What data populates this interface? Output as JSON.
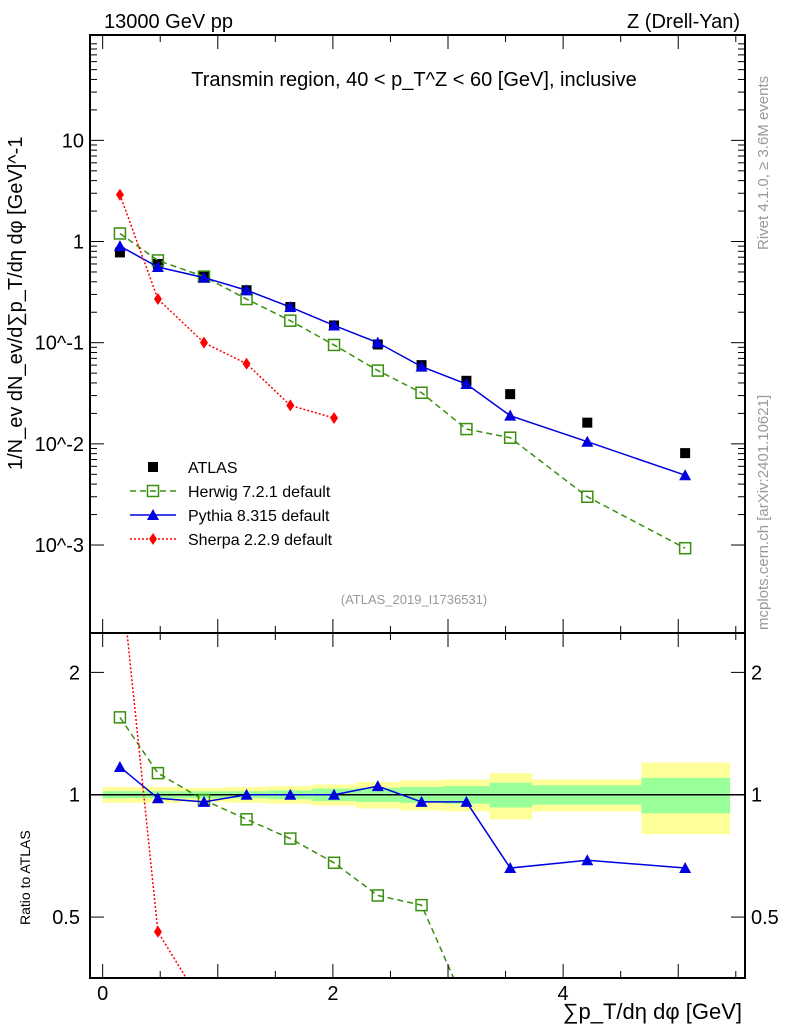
{
  "chart_data": [
    {
      "type": "line",
      "panel": "main",
      "title_left": "13000 GeV pp",
      "title_right": "Z (Drell-Yan)",
      "annotation": "Transmin region, 40 < p_T^Z < 60 [GeV], inclusive",
      "ylabel": "1/N_ev dN_ev/d∑p_T/dη dφ [GeV]^-1",
      "yscale": "log",
      "ylim": [
        0.000135,
        110
      ],
      "xlim": [
        -0.11,
        5.58
      ],
      "ytick_labels": [
        "10^-3",
        "10^-2",
        "10^-1",
        "1",
        "10"
      ],
      "ytick_values": [
        0.001,
        0.01,
        0.1,
        1,
        10
      ],
      "x": [
        0.15,
        0.48,
        0.88,
        1.25,
        1.63,
        2.01,
        2.39,
        2.77,
        3.16,
        3.54,
        4.21,
        5.06
      ],
      "series": [
        {
          "name": "ATLAS",
          "color": "#000000",
          "marker": "square",
          "values": [
            0.78,
            0.6,
            0.46,
            0.33,
            0.225,
            0.148,
            0.096,
            0.06,
            0.042,
            0.031,
            0.0162,
            0.0081
          ]
        },
        {
          "name": "Herwig 7.2.1 default",
          "color": "#3a8f0f",
          "marker": "open-square",
          "dash": "dashed",
          "values": [
            1.2,
            0.65,
            0.45,
            0.27,
            0.165,
            0.095,
            0.053,
            0.032,
            0.014,
            0.0115,
            0.003,
            0.00093
          ]
        },
        {
          "name": "Pythia 8.315 default",
          "color": "#0000e0",
          "marker": "triangle",
          "dash": "solid",
          "values": [
            0.9,
            0.56,
            0.44,
            0.33,
            0.225,
            0.148,
            0.1,
            0.058,
            0.039,
            0.019,
            0.0105,
            0.0049
          ]
        },
        {
          "name": "Sherpa 2.2.9 default",
          "color": "#ff0000",
          "marker": "diamond",
          "dash": "dotted",
          "values": [
            2.9,
            0.27,
            0.1,
            0.062,
            0.024,
            0.018,
            null,
            null,
            null,
            null,
            null,
            null
          ]
        }
      ],
      "legend_position": "bottom-left",
      "watermark": "(ATLAS_2019_I1736531)",
      "side_label_top": "Rivet 4.1.0, ≥ 3.6M events",
      "side_label_bottom": "mcplots.cern.ch [arXiv:2401.10621]"
    },
    {
      "type": "line",
      "panel": "ratio",
      "ylabel": "Ratio to ATLAS",
      "xlabel": "∑p_T/dη dφ [GeV]",
      "yscale": "log",
      "ylim": [
        0.354,
        2.5
      ],
      "xlim": [
        -0.11,
        5.58
      ],
      "ytick_labels": [
        "0.5",
        "1",
        "2"
      ],
      "ytick_values": [
        0.5,
        1,
        2
      ],
      "xtick_labels": [
        "0",
        "2",
        "4"
      ],
      "xtick_values": [
        0,
        2,
        4
      ],
      "x": [
        0.15,
        0.48,
        0.88,
        1.25,
        1.63,
        2.01,
        2.39,
        2.77,
        3.16,
        3.54,
        4.21,
        5.06
      ],
      "band_edges": [
        0.0,
        0.33,
        0.67,
        1.07,
        1.44,
        1.82,
        2.2,
        2.58,
        2.96,
        3.36,
        3.73,
        4.68,
        5.45
      ],
      "band_stat": [
        0.02,
        0.02,
        0.02,
        0.02,
        0.025,
        0.035,
        0.04,
        0.045,
        0.05,
        0.07,
        0.055,
        0.1
      ],
      "band_total": [
        0.045,
        0.045,
        0.04,
        0.045,
        0.05,
        0.06,
        0.075,
        0.085,
        0.09,
        0.13,
        0.09,
        0.2
      ],
      "series": [
        {
          "name": "Herwig 7.2.1 default",
          "values": [
            1.55,
            1.13,
            0.97,
            0.87,
            0.78,
            0.68,
            0.565,
            0.535,
            0.3,
            null,
            null,
            null
          ]
        },
        {
          "name": "Pythia 8.315 default",
          "values": [
            1.17,
            0.98,
            0.96,
            1.0,
            1.0,
            1.0,
            1.05,
            0.96,
            0.96,
            0.66,
            0.69,
            0.66
          ]
        },
        {
          "name": "Sherpa 2.2.9 default",
          "values": [
            3.7,
            0.46,
            0.3,
            null,
            null,
            null,
            null,
            null,
            null,
            null,
            null,
            null
          ]
        }
      ]
    }
  ]
}
